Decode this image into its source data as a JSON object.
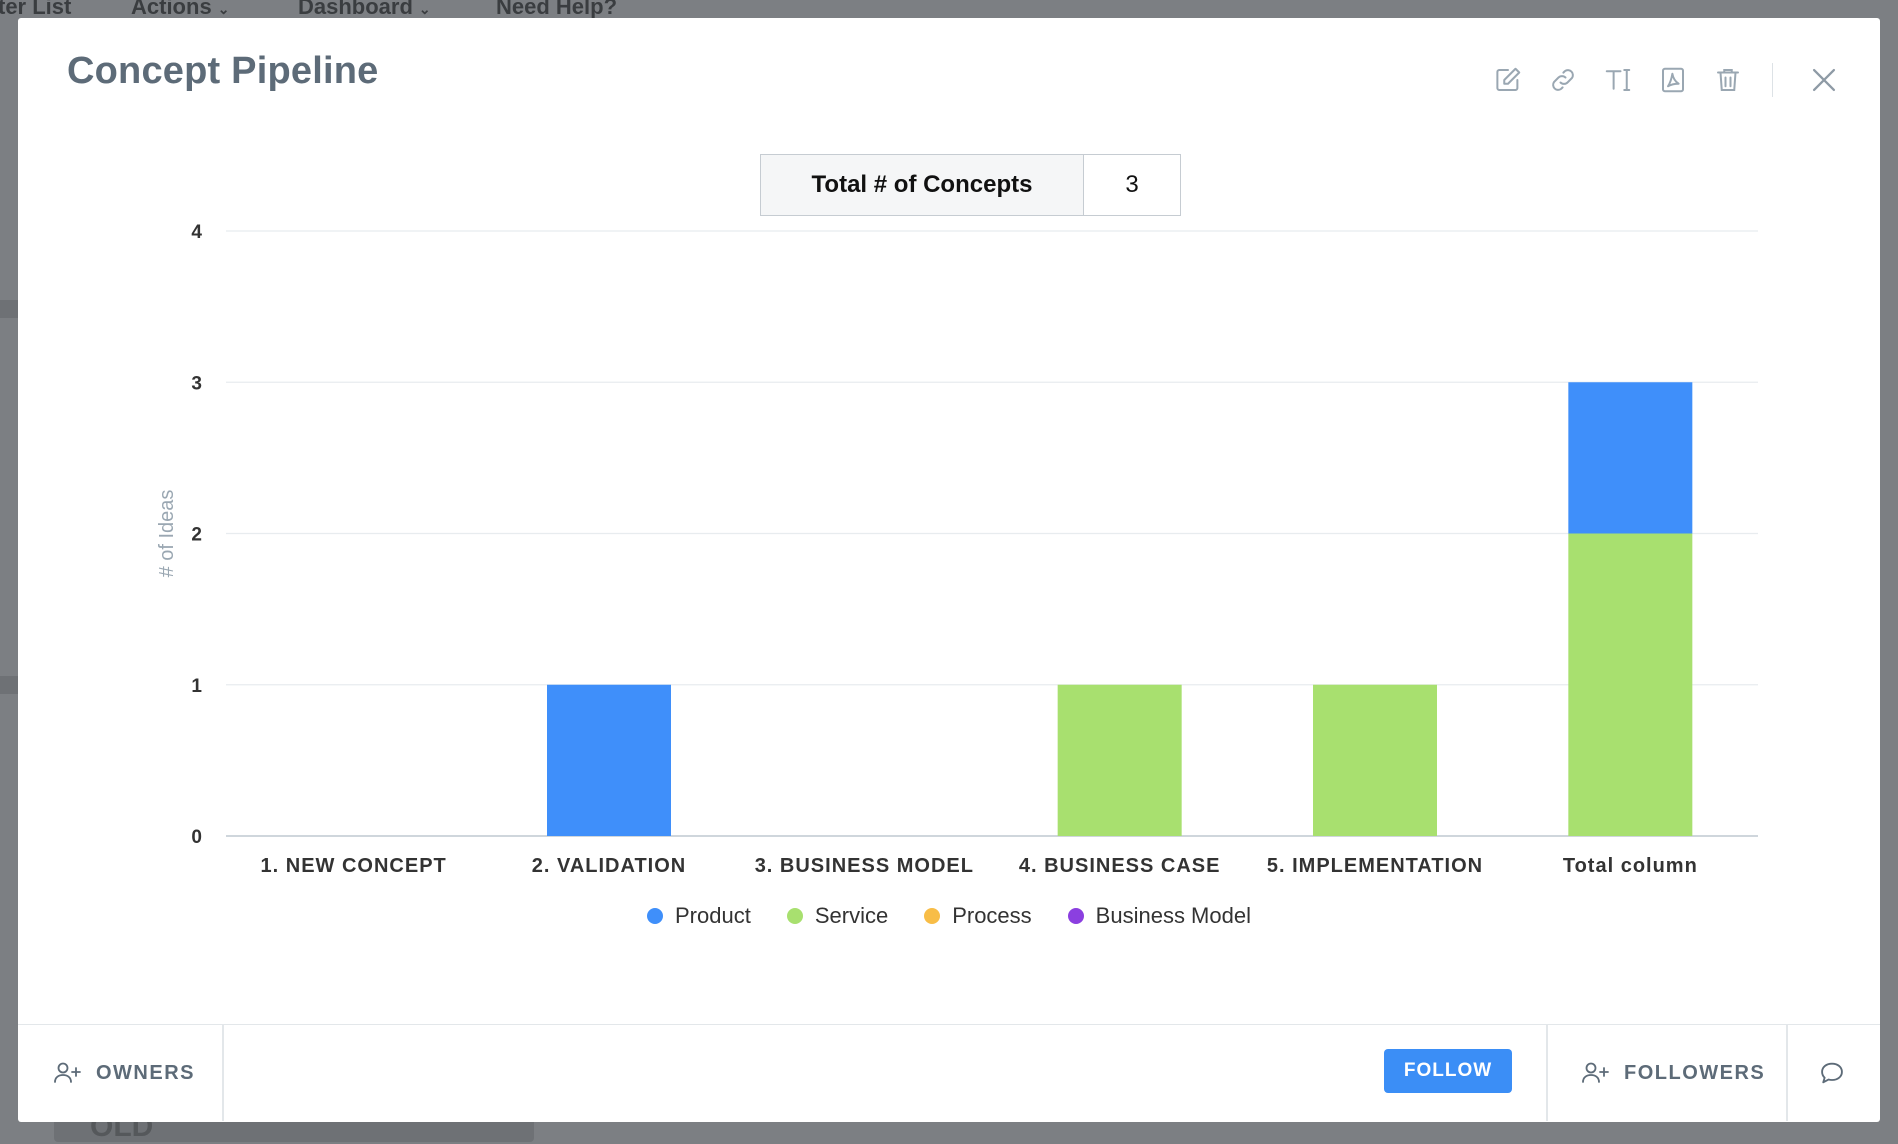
{
  "background_nav": {
    "items": [
      {
        "label": "ter List",
        "has_dropdown": false
      },
      {
        "label": "Actions",
        "has_dropdown": true
      },
      {
        "label": "Dashboard",
        "has_dropdown": true
      },
      {
        "label": "Need Help?",
        "has_dropdown": false
      }
    ],
    "bottom_text": "OLD"
  },
  "modal": {
    "title": "Concept Pipeline",
    "toolbar": [
      {
        "icon": "edit-icon"
      },
      {
        "icon": "link-icon"
      },
      {
        "icon": "text-format-icon"
      },
      {
        "icon": "pdf-icon"
      },
      {
        "icon": "trash-icon"
      },
      {
        "icon": "close-icon"
      }
    ]
  },
  "summary": {
    "label": "Total # of Concepts",
    "value": "3"
  },
  "chart_data": {
    "type": "bar",
    "stacked": true,
    "categories": [
      "1. NEW CONCEPT",
      "2. VALIDATION",
      "3. BUSINESS MODEL",
      "4. BUSINESS CASE",
      "5. IMPLEMENTATION",
      "Total column"
    ],
    "series": [
      {
        "name": "Product",
        "color": "#3f8ffa",
        "values": [
          0,
          1,
          0,
          0,
          0,
          1
        ]
      },
      {
        "name": "Service",
        "color": "#a8e06f",
        "values": [
          0,
          0,
          0,
          1,
          1,
          2
        ]
      },
      {
        "name": "Process",
        "color": "#f8bd47",
        "values": [
          0,
          0,
          0,
          0,
          0,
          0
        ]
      },
      {
        "name": "Business Model",
        "color": "#8b3fe0",
        "values": [
          0,
          0,
          0,
          0,
          0,
          0
        ]
      }
    ],
    "stack_order": [
      "Service",
      "Product",
      "Process",
      "Business Model"
    ],
    "ylabel": "# of Ideas",
    "xlabel": "",
    "ylim": [
      0,
      4
    ],
    "yticks": [
      "0",
      "1",
      "2",
      "3",
      "4"
    ],
    "grid": true,
    "legend_position": "bottom"
  },
  "footer": {
    "owners_label": "OWNERS",
    "follow_label": "FOLLOW",
    "followers_label": "FOLLOWERS"
  },
  "colors": {
    "accent": "#3b8ef6",
    "title": "#5d6b78",
    "icon": "#9aa7b2"
  }
}
